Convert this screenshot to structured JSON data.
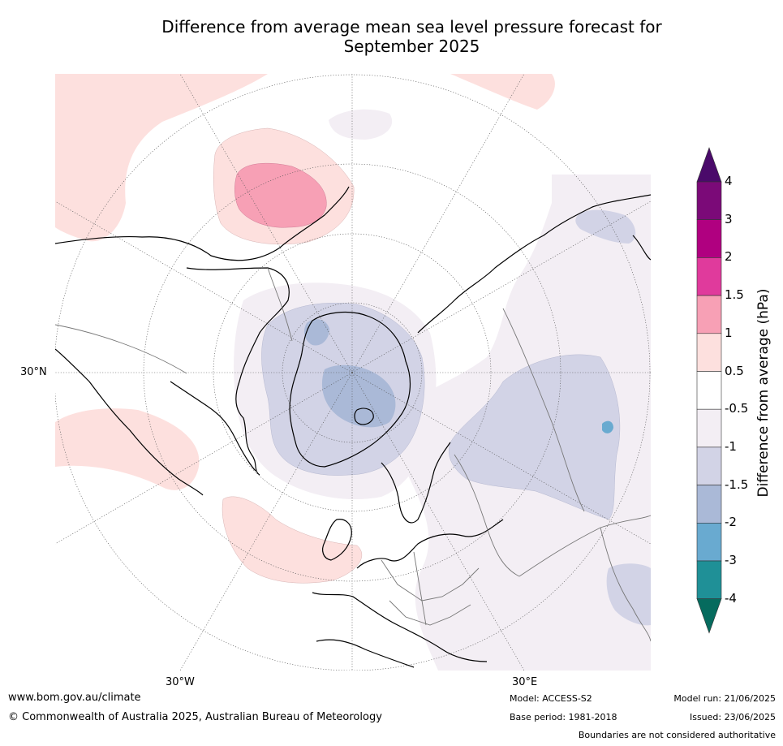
{
  "title": {
    "line1": "Difference from average mean sea level pressure forecast for",
    "line2": "September 2025"
  },
  "map": {
    "lat_labels": {
      "left": "30°N",
      "bottom_left": "30°W",
      "bottom_right": "30°E"
    }
  },
  "colorbar": {
    "label": "Difference from average (hPa)",
    "ticks": [
      "4",
      "3",
      "2",
      "1.5",
      "1",
      "0.5",
      "-0.5",
      "-1",
      "-1.5",
      "-2",
      "-3",
      "-4"
    ],
    "bins": [
      {
        "range": "3 to 4",
        "color": "#7b0a78"
      },
      {
        "range": "2 to 3",
        "color": "#b00080"
      },
      {
        "range": "1.5 to 2",
        "color": "#e03a9c"
      },
      {
        "range": "1 to 1.5",
        "color": "#f7a0b5"
      },
      {
        "range": "0.5 to 1",
        "color": "#fde0de"
      },
      {
        "range": "-0.5 to 0.5",
        "color": "#ffffff"
      },
      {
        "range": "-1 to -0.5",
        "color": "#f3eef4"
      },
      {
        "range": "-1.5 to -1",
        "color": "#d2d3e6"
      },
      {
        "range": "-2 to -1.5",
        "color": "#aab9d7"
      },
      {
        "range": "-3 to -2",
        "color": "#69aad0"
      },
      {
        "range": "-4 to -3",
        "color": "#1f9097"
      }
    ],
    "extend_max_color": "#4a0a6a",
    "extend_min_color": "#066b5e"
  },
  "footer": {
    "website": "www.bom.gov.au/climate",
    "copyright": "© Commonwealth of Australia 2025, Australian Bureau of Meteorology",
    "model": "Model: ACCESS-S2",
    "base_period": "Base period: 1981-2018",
    "model_run": "Model run: 21/06/2025",
    "issued": "Issued: 23/06/2025",
    "disclaimer": "Boundaries are not considered authoritative"
  }
}
